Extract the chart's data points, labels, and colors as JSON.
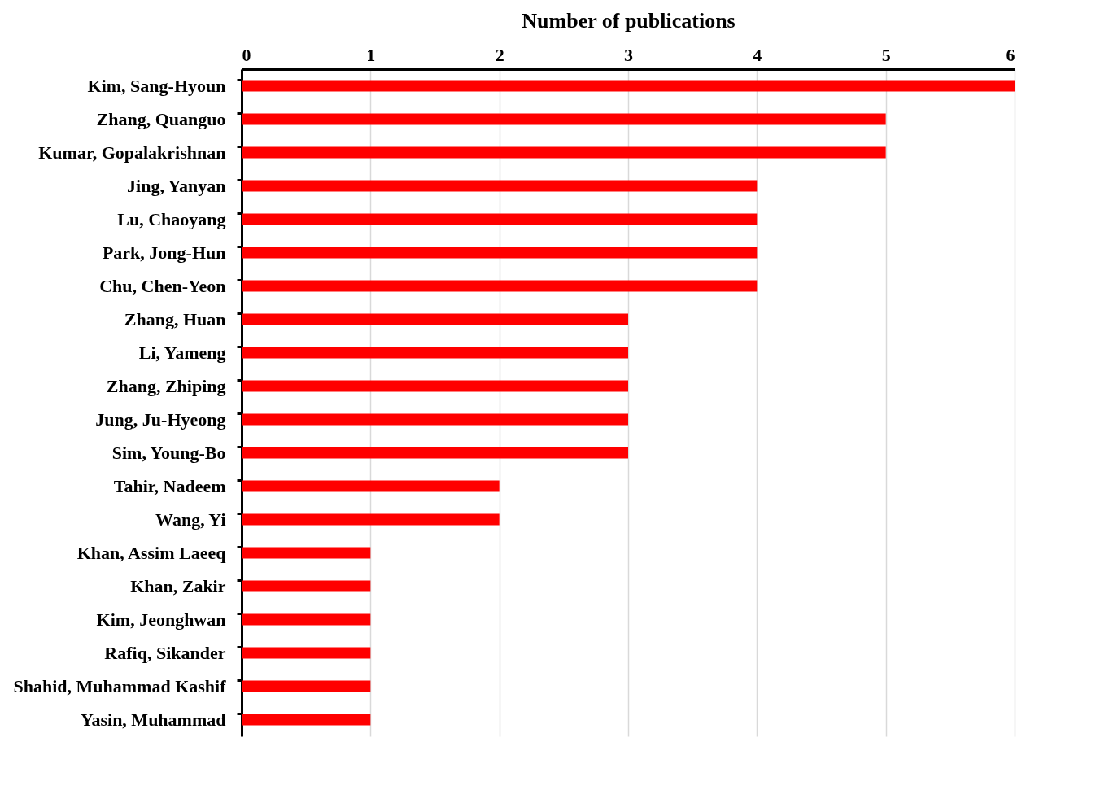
{
  "chart_data": {
    "type": "bar",
    "orientation": "horizontal",
    "xlabel": "Number of publications",
    "categories": [
      "Kim, Sang-Hyoun",
      "Zhang, Quanguo",
      "Kumar, Gopalakrishnan",
      "Jing, Yanyan",
      "Lu, Chaoyang",
      "Park, Jong-Hun",
      "Chu, Chen-Yeon",
      "Zhang, Huan",
      "Li, Yameng",
      "Zhang, Zhiping",
      "Jung, Ju-Hyeong",
      "Sim, Young-Bo",
      "Tahir, Nadeem",
      "Wang, Yi",
      "Khan, Assim Laeeq",
      "Khan, Zakir",
      "Kim, Jeonghwan",
      "Rafiq, Sikander",
      "Shahid, Muhammad Kashif",
      "Yasin, Muhammad"
    ],
    "values": [
      6,
      5,
      5,
      4,
      4,
      4,
      4,
      3,
      3,
      3,
      3,
      3,
      2,
      2,
      1,
      1,
      1,
      1,
      1,
      1
    ],
    "color": "#ff0000",
    "xlim": [
      0,
      6
    ],
    "xticks": [
      0,
      1,
      2,
      3,
      4,
      5,
      6
    ],
    "grid": "x"
  }
}
